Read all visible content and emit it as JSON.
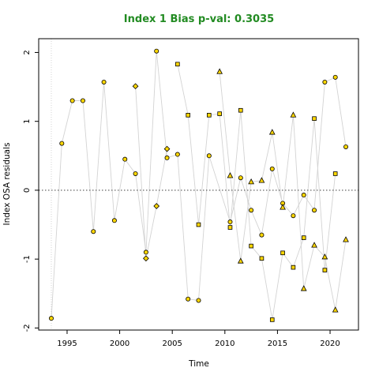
{
  "chart_data": {
    "type": "scatter",
    "title": "Index 1 Bias p-val: 0.3035",
    "title_color": "#228B22",
    "xlabel": "Time",
    "ylabel": "Index OSA residuals",
    "xlim": [
      1992.3,
      2022.7
    ],
    "ylim": [
      -2.03,
      2.2
    ],
    "x_ticks": [
      1995,
      2000,
      2005,
      2010,
      2015,
      2020
    ],
    "y_ticks": [
      -2,
      -1,
      0,
      1,
      2
    ],
    "grid": false,
    "reference_line_y": 0,
    "vertical_reference_x": 1993.5,
    "marker_fill": "#FFD700",
    "marker_edge": "#000000",
    "line_color": "#D3D3D3",
    "series": [
      {
        "marker": "circle",
        "points": [
          {
            "x": 1993.5,
            "y": -1.86
          },
          {
            "x": 1994.5,
            "y": 0.68
          },
          {
            "x": 1995.5,
            "y": 1.3
          },
          {
            "x": 1996.5,
            "y": 1.3
          },
          {
            "x": 1997.5,
            "y": -0.6
          },
          {
            "x": 1998.5,
            "y": 1.57
          },
          {
            "x": 1999.5,
            "y": -0.44
          },
          {
            "x": 2000.5,
            "y": 0.45
          },
          {
            "x": 2001.5,
            "y": 0.24
          },
          {
            "x": 2002.5,
            "y": -0.9
          },
          {
            "x": 2003.5,
            "y": 2.02
          },
          {
            "x": 2004.5,
            "y": 0.47
          },
          {
            "x": 2005.5,
            "y": 0.52
          },
          {
            "x": 2006.5,
            "y": -1.58
          },
          {
            "x": 2007.5,
            "y": -1.6
          },
          {
            "x": 2008.5,
            "y": 0.5
          },
          {
            "x": 2010.5,
            "y": -0.46
          },
          {
            "x": 2011.5,
            "y": 0.18
          },
          {
            "x": 2012.5,
            "y": -0.29
          },
          {
            "x": 2013.5,
            "y": -0.65
          },
          {
            "x": 2014.5,
            "y": 0.31
          },
          {
            "x": 2015.5,
            "y": -0.19
          },
          {
            "x": 2016.5,
            "y": -0.37
          },
          {
            "x": 2017.5,
            "y": -0.07
          },
          {
            "x": 2018.5,
            "y": -0.29
          },
          {
            "x": 2019.5,
            "y": 1.57
          },
          {
            "x": 2020.5,
            "y": 1.64
          },
          {
            "x": 2021.5,
            "y": 0.63
          }
        ]
      },
      {
        "marker": "diamond",
        "points": [
          {
            "x": 2001.5,
            "y": 1.51
          },
          {
            "x": 2002.5,
            "y": -0.99
          },
          {
            "x": 2003.5,
            "y": -0.23
          },
          {
            "x": 2004.5,
            "y": 0.6
          }
        ]
      },
      {
        "marker": "square",
        "points": [
          {
            "x": 2005.5,
            "y": 1.83
          },
          {
            "x": 2006.5,
            "y": 1.09
          },
          {
            "x": 2007.5,
            "y": -0.5
          },
          {
            "x": 2008.5,
            "y": 1.09
          },
          {
            "x": 2009.5,
            "y": 1.11
          },
          {
            "x": 2010.5,
            "y": -0.54
          },
          {
            "x": 2011.5,
            "y": 1.16
          },
          {
            "x": 2012.5,
            "y": -0.81
          },
          {
            "x": 2013.5,
            "y": -0.99
          },
          {
            "x": 2014.5,
            "y": -1.88
          },
          {
            "x": 2015.5,
            "y": -0.91
          },
          {
            "x": 2016.5,
            "y": -1.12
          },
          {
            "x": 2017.5,
            "y": -0.69
          },
          {
            "x": 2018.5,
            "y": 1.04
          },
          {
            "x": 2019.5,
            "y": -1.16
          },
          {
            "x": 2020.5,
            "y": 0.24
          }
        ]
      },
      {
        "marker": "triangle",
        "points": [
          {
            "x": 2009.5,
            "y": 1.72
          },
          {
            "x": 2010.5,
            "y": 0.21
          },
          {
            "x": 2011.5,
            "y": -1.03
          },
          {
            "x": 2012.5,
            "y": 0.12
          },
          {
            "x": 2013.5,
            "y": 0.14
          },
          {
            "x": 2014.5,
            "y": 0.84
          },
          {
            "x": 2015.5,
            "y": -0.25
          },
          {
            "x": 2016.5,
            "y": 1.09
          },
          {
            "x": 2017.5,
            "y": -1.43
          },
          {
            "x": 2018.5,
            "y": -0.8
          },
          {
            "x": 2019.5,
            "y": -0.97
          },
          {
            "x": 2020.5,
            "y": -1.74
          },
          {
            "x": 2021.5,
            "y": -0.72
          }
        ]
      }
    ]
  }
}
